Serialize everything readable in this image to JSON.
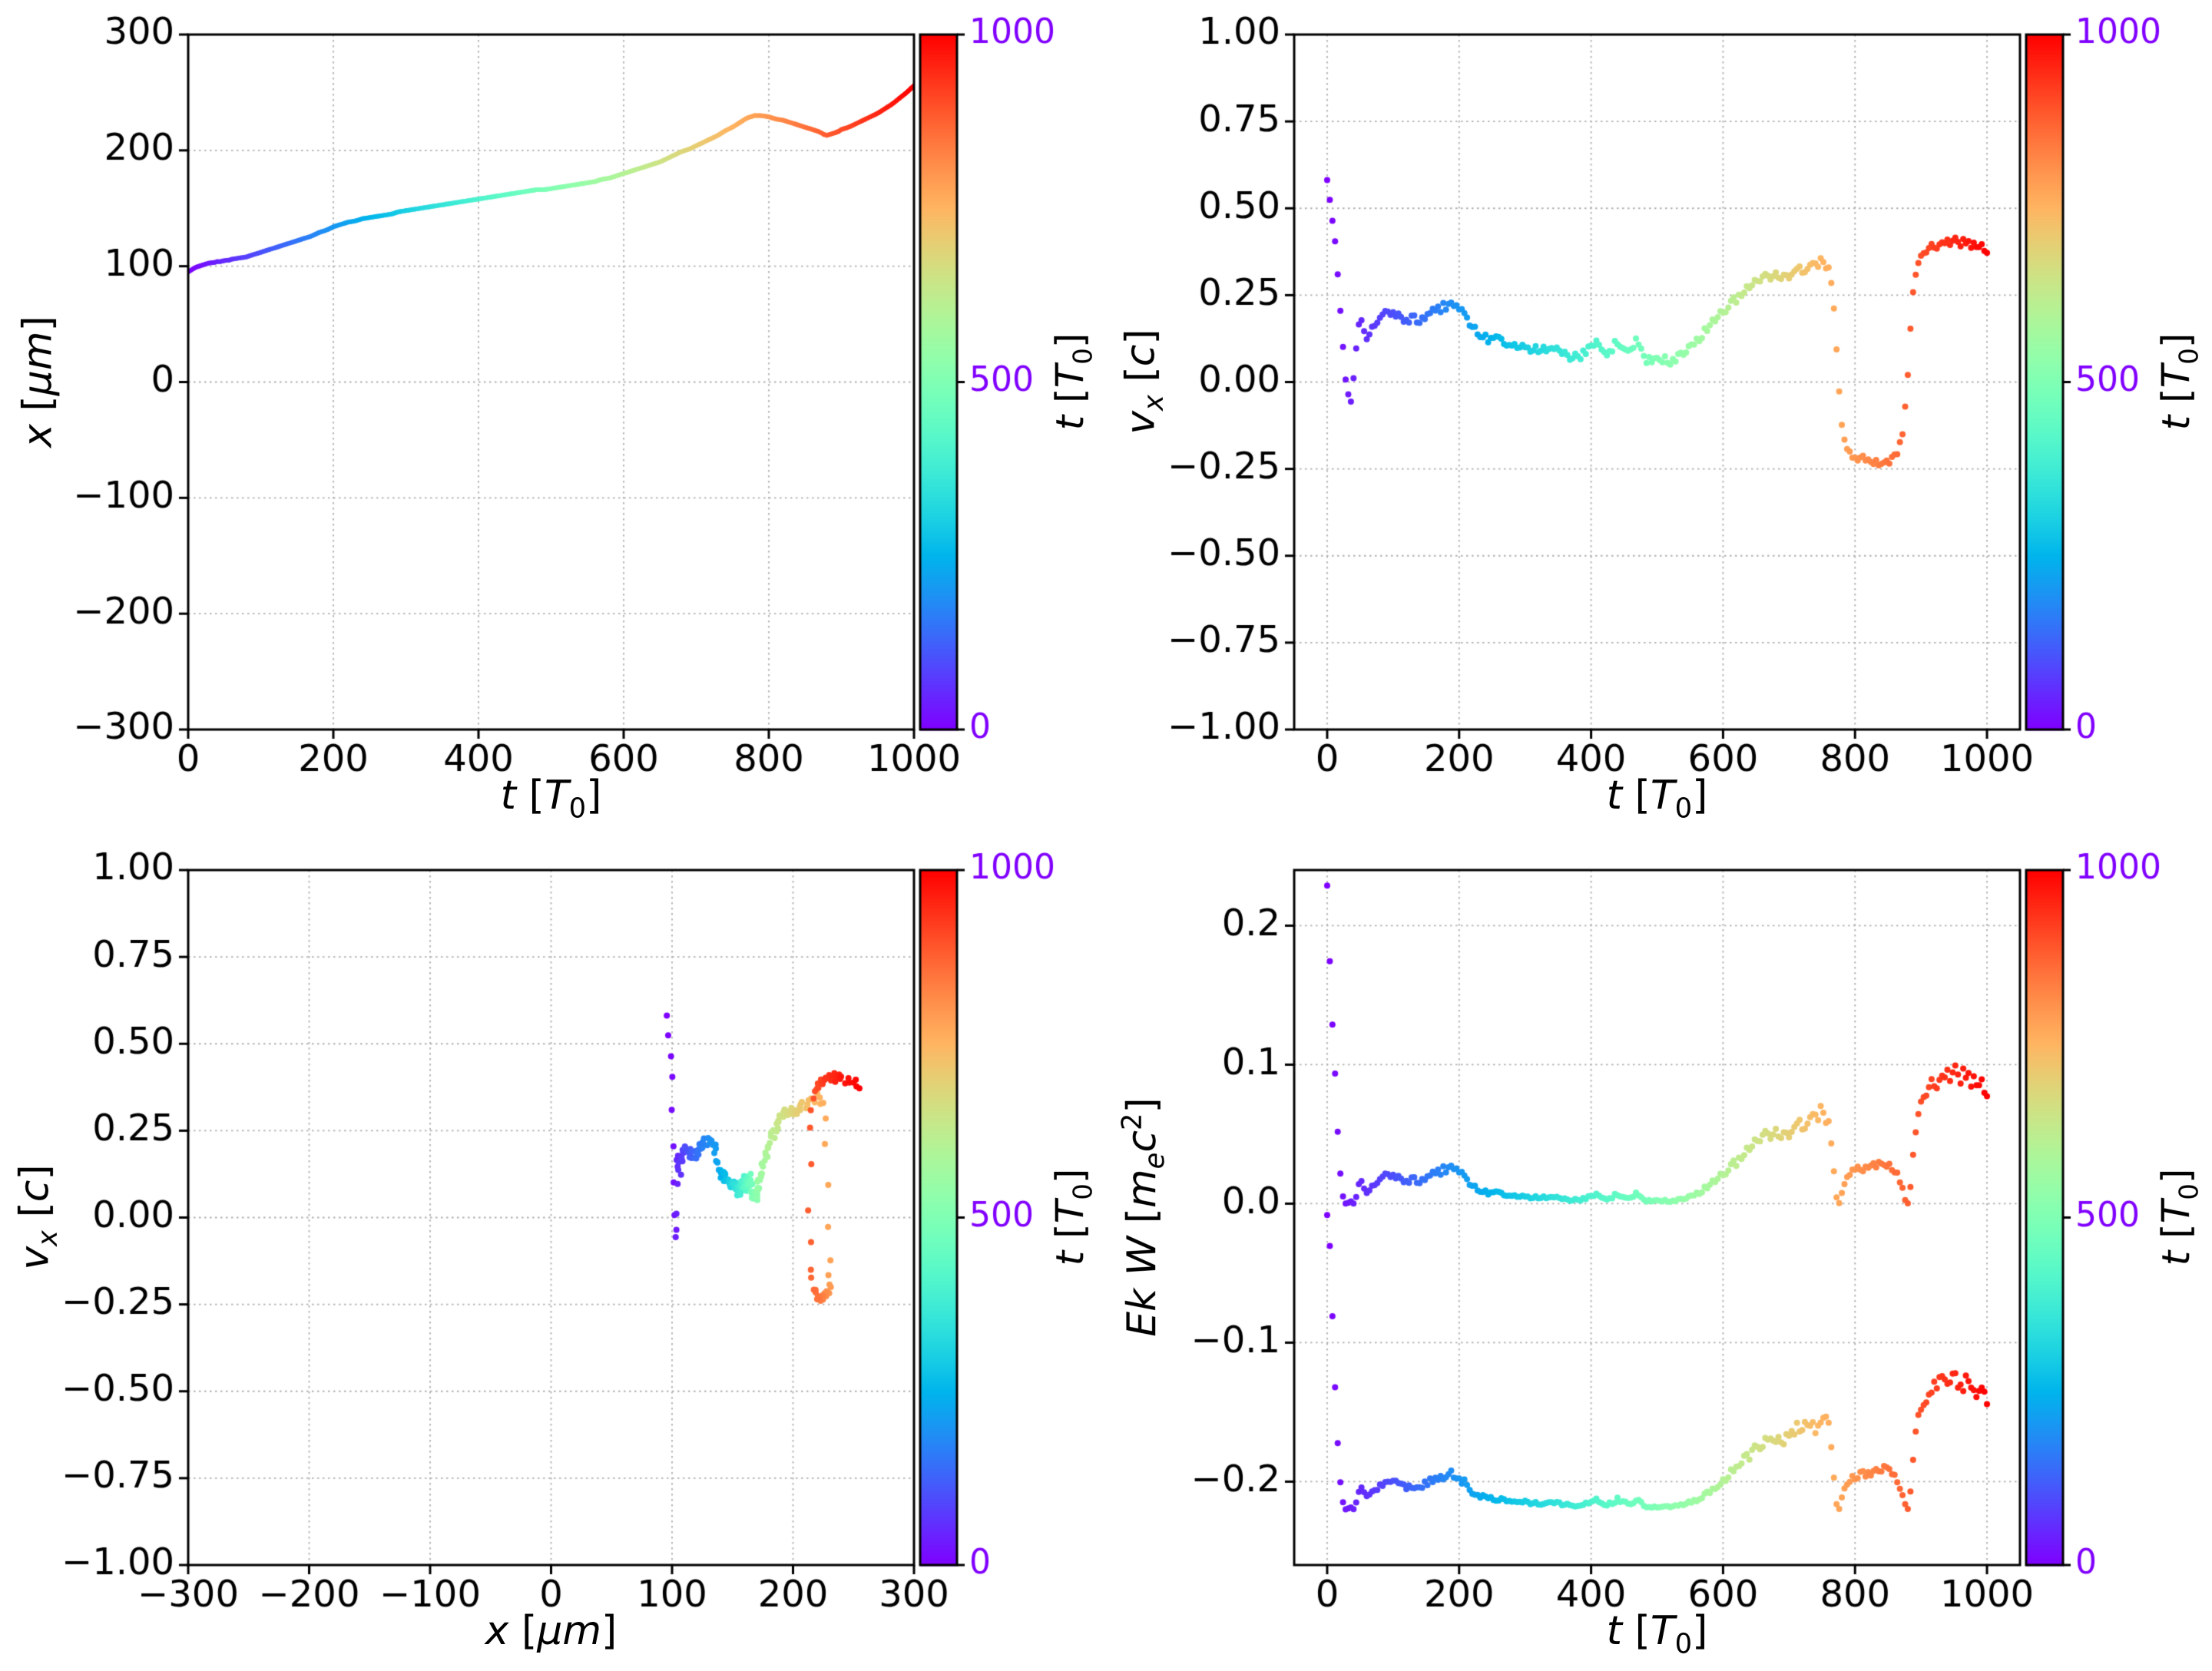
{
  "figure": {
    "background": "#ffffff",
    "axis_color": "#000000",
    "grid_color": "#b0b0b0",
    "noise_seed": 20240
  },
  "chart_data": {
    "type": "multi-panel",
    "colormap": "rainbow",
    "sample_step": 4,
    "colorbar": {
      "label": "t [T_0]",
      "min": 0,
      "max": 1000,
      "ticks": [
        0,
        500,
        1000
      ]
    },
    "derived": {
      "Ek": "1/sqrt(1-vx^2)-1",
      "W": "Ek - 0.22",
      "w_offset": -0.22
    },
    "trajectory_anchors": {
      "t": [
        0,
        5,
        10,
        15,
        20,
        25,
        30,
        35,
        40,
        45,
        50,
        55,
        60,
        70,
        80,
        90,
        100,
        110,
        120,
        130,
        140,
        150,
        160,
        170,
        180,
        190,
        200,
        210,
        220,
        230,
        240,
        250,
        260,
        270,
        280,
        290,
        300,
        320,
        340,
        360,
        380,
        400,
        410,
        420,
        430,
        440,
        450,
        460,
        470,
        480,
        490,
        500,
        510,
        520,
        530,
        540,
        550,
        560,
        570,
        580,
        590,
        600,
        610,
        620,
        630,
        640,
        650,
        660,
        670,
        680,
        690,
        700,
        710,
        720,
        730,
        740,
        750,
        760,
        765,
        770,
        775,
        780,
        785,
        790,
        800,
        810,
        820,
        830,
        840,
        850,
        860,
        865,
        870,
        875,
        880,
        885,
        890,
        895,
        900,
        910,
        920,
        930,
        940,
        950,
        960,
        970,
        980,
        990,
        1000
      ],
      "x_um": [
        95,
        97,
        99,
        100,
        101,
        102,
        103,
        103,
        104,
        104,
        105,
        105,
        106,
        107,
        108,
        110,
        112,
        114,
        116,
        118,
        120,
        122,
        124,
        126,
        129,
        131,
        134,
        136,
        138,
        139,
        141,
        142,
        143,
        144,
        145,
        147,
        148,
        150,
        152,
        154,
        156,
        158,
        159,
        160,
        161,
        162,
        163,
        164,
        165,
        166,
        166,
        167,
        168,
        169,
        170,
        171,
        172,
        173,
        175,
        176,
        178,
        180,
        182,
        184,
        186,
        188,
        190,
        193,
        196,
        199,
        201,
        204,
        207,
        210,
        213,
        217,
        220,
        224,
        226,
        228,
        229,
        230,
        230,
        230,
        229,
        227,
        226,
        224,
        222,
        220,
        218,
        217,
        216,
        214,
        213,
        214,
        215,
        216,
        218,
        220,
        223,
        226,
        229,
        232,
        236,
        240,
        245,
        250,
        256
      ],
      "vx_c": [
        0.57,
        0.52,
        0.44,
        0.33,
        0.2,
        0.08,
        -0.03,
        -0.07,
        0.02,
        0.12,
        0.2,
        0.15,
        0.13,
        0.16,
        0.18,
        0.2,
        0.2,
        0.19,
        0.18,
        0.18,
        0.18,
        0.19,
        0.2,
        0.21,
        0.22,
        0.22,
        0.21,
        0.19,
        0.16,
        0.14,
        0.13,
        0.12,
        0.12,
        0.11,
        0.11,
        0.1,
        0.1,
        0.09,
        0.1,
        0.08,
        0.07,
        0.1,
        0.12,
        0.08,
        0.09,
        0.12,
        0.1,
        0.09,
        0.13,
        0.07,
        0.06,
        0.06,
        0.07,
        0.06,
        0.07,
        0.08,
        0.1,
        0.12,
        0.14,
        0.16,
        0.18,
        0.2,
        0.22,
        0.24,
        0.26,
        0.27,
        0.29,
        0.3,
        0.3,
        0.31,
        0.3,
        0.31,
        0.33,
        0.32,
        0.34,
        0.33,
        0.35,
        0.33,
        0.28,
        0.15,
        0.0,
        -0.12,
        -0.18,
        -0.2,
        -0.21,
        -0.22,
        -0.22,
        -0.23,
        -0.24,
        -0.23,
        -0.22,
        -0.2,
        -0.17,
        -0.1,
        0.02,
        0.18,
        0.3,
        0.35,
        0.37,
        0.38,
        0.39,
        0.4,
        0.4,
        0.41,
        0.4,
        0.4,
        0.39,
        0.39,
        0.38
      ]
    },
    "plots": [
      {
        "id": "x-vs-t",
        "type": "line",
        "x": "t",
        "y": "x_um",
        "xlabel": "t [T_0]",
        "ylabel": "x [μm]",
        "xlim": [
          0,
          1000
        ],
        "ylim": [
          -300,
          300
        ],
        "xticks": [
          0,
          200,
          400,
          600,
          800,
          1000
        ],
        "yticks": [
          -300,
          -200,
          -100,
          0,
          100,
          200,
          300
        ],
        "xdec": 0,
        "ydec": 0,
        "grid": true,
        "noise": 0,
        "line_width": 6
      },
      {
        "id": "vx-vs-t",
        "type": "scatter",
        "x": "t",
        "y": "vx_c",
        "xlabel": "t [T_0]",
        "ylabel": "v_x [c]",
        "xlim": [
          -50,
          1050
        ],
        "ylim": [
          -1,
          1
        ],
        "xticks": [
          0,
          200,
          400,
          600,
          800,
          1000
        ],
        "yticks": [
          -1,
          -0.75,
          -0.5,
          -0.25,
          0,
          0.25,
          0.5,
          0.75,
          1
        ],
        "xdec": 0,
        "ydec": 2,
        "grid": true,
        "noise": 0.012,
        "dot_radius": 4
      },
      {
        "id": "vx-vs-x",
        "type": "scatter",
        "x": "x_um",
        "y": "vx_c",
        "xlabel": "x [μm]",
        "ylabel": "v_x [c]",
        "xlim": [
          -300,
          300
        ],
        "ylim": [
          -1,
          1
        ],
        "xticks": [
          -300,
          -200,
          -100,
          0,
          100,
          200,
          300
        ],
        "yticks": [
          -1,
          -0.75,
          -0.5,
          -0.25,
          0,
          0.25,
          0.5,
          0.75,
          1
        ],
        "xdec": 0,
        "ydec": 2,
        "grid": true,
        "noise": 0.012,
        "x_jitter": 1.5,
        "dot_radius": 4
      },
      {
        "id": "ekw-vs-t",
        "type": "scatter",
        "x": "t",
        "y": [
          "Ek",
          "W"
        ],
        "xlabel": "t [T_0]",
        "ylabel": "Ek W [m_ec^2]",
        "xlim": [
          -50,
          1050
        ],
        "ylim": [
          -0.26,
          0.24
        ],
        "xticks": [
          0,
          200,
          400,
          600,
          800,
          1000
        ],
        "yticks": [
          -0.2,
          -0.1,
          0,
          0.1,
          0.2
        ],
        "xdec": 0,
        "ydec": 1,
        "grid": true,
        "noise": 0.012,
        "dot_radius": 4
      }
    ]
  }
}
